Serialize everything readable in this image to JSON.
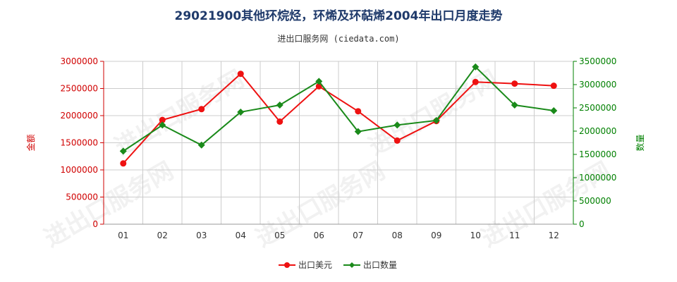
{
  "title": "29021900其他环烷烃，环烯及环萜烯2004年出口月度走势",
  "subtitle": "进出口服务网 (ciedata.com)",
  "watermark": "进出口服务网",
  "chart_data": {
    "type": "line",
    "categories": [
      "01",
      "02",
      "03",
      "04",
      "05",
      "06",
      "07",
      "08",
      "09",
      "10",
      "11",
      "12"
    ],
    "left_axis": {
      "label": "金额",
      "min": 0,
      "max": 3000000,
      "ticks": [
        "0",
        "500000",
        "1000000",
        "1500000",
        "2000000",
        "2500000",
        "3000000"
      ],
      "color": "#d00000"
    },
    "right_axis": {
      "label": "数量",
      "min": 0,
      "max": 3500000,
      "ticks": [
        "0",
        "500000",
        "1000000",
        "1500000",
        "2000000",
        "2500000",
        "3000000",
        "3500000"
      ],
      "color": "#008000"
    },
    "series": [
      {
        "name": "出口美元",
        "axis": "left",
        "color": "#ee1111",
        "marker": "circle",
        "values": [
          1120000,
          1920000,
          2120000,
          2770000,
          1890000,
          2540000,
          2080000,
          1540000,
          1900000,
          2620000,
          2590000,
          2550000
        ]
      },
      {
        "name": "出口数量",
        "axis": "right",
        "color": "#1a8a1a",
        "marker": "diamond",
        "values": [
          1570000,
          2130000,
          1700000,
          2410000,
          2560000,
          3070000,
          1990000,
          2130000,
          2230000,
          3380000,
          2560000,
          2440000
        ]
      }
    ],
    "grid": true,
    "legend_position": "bottom-center"
  }
}
